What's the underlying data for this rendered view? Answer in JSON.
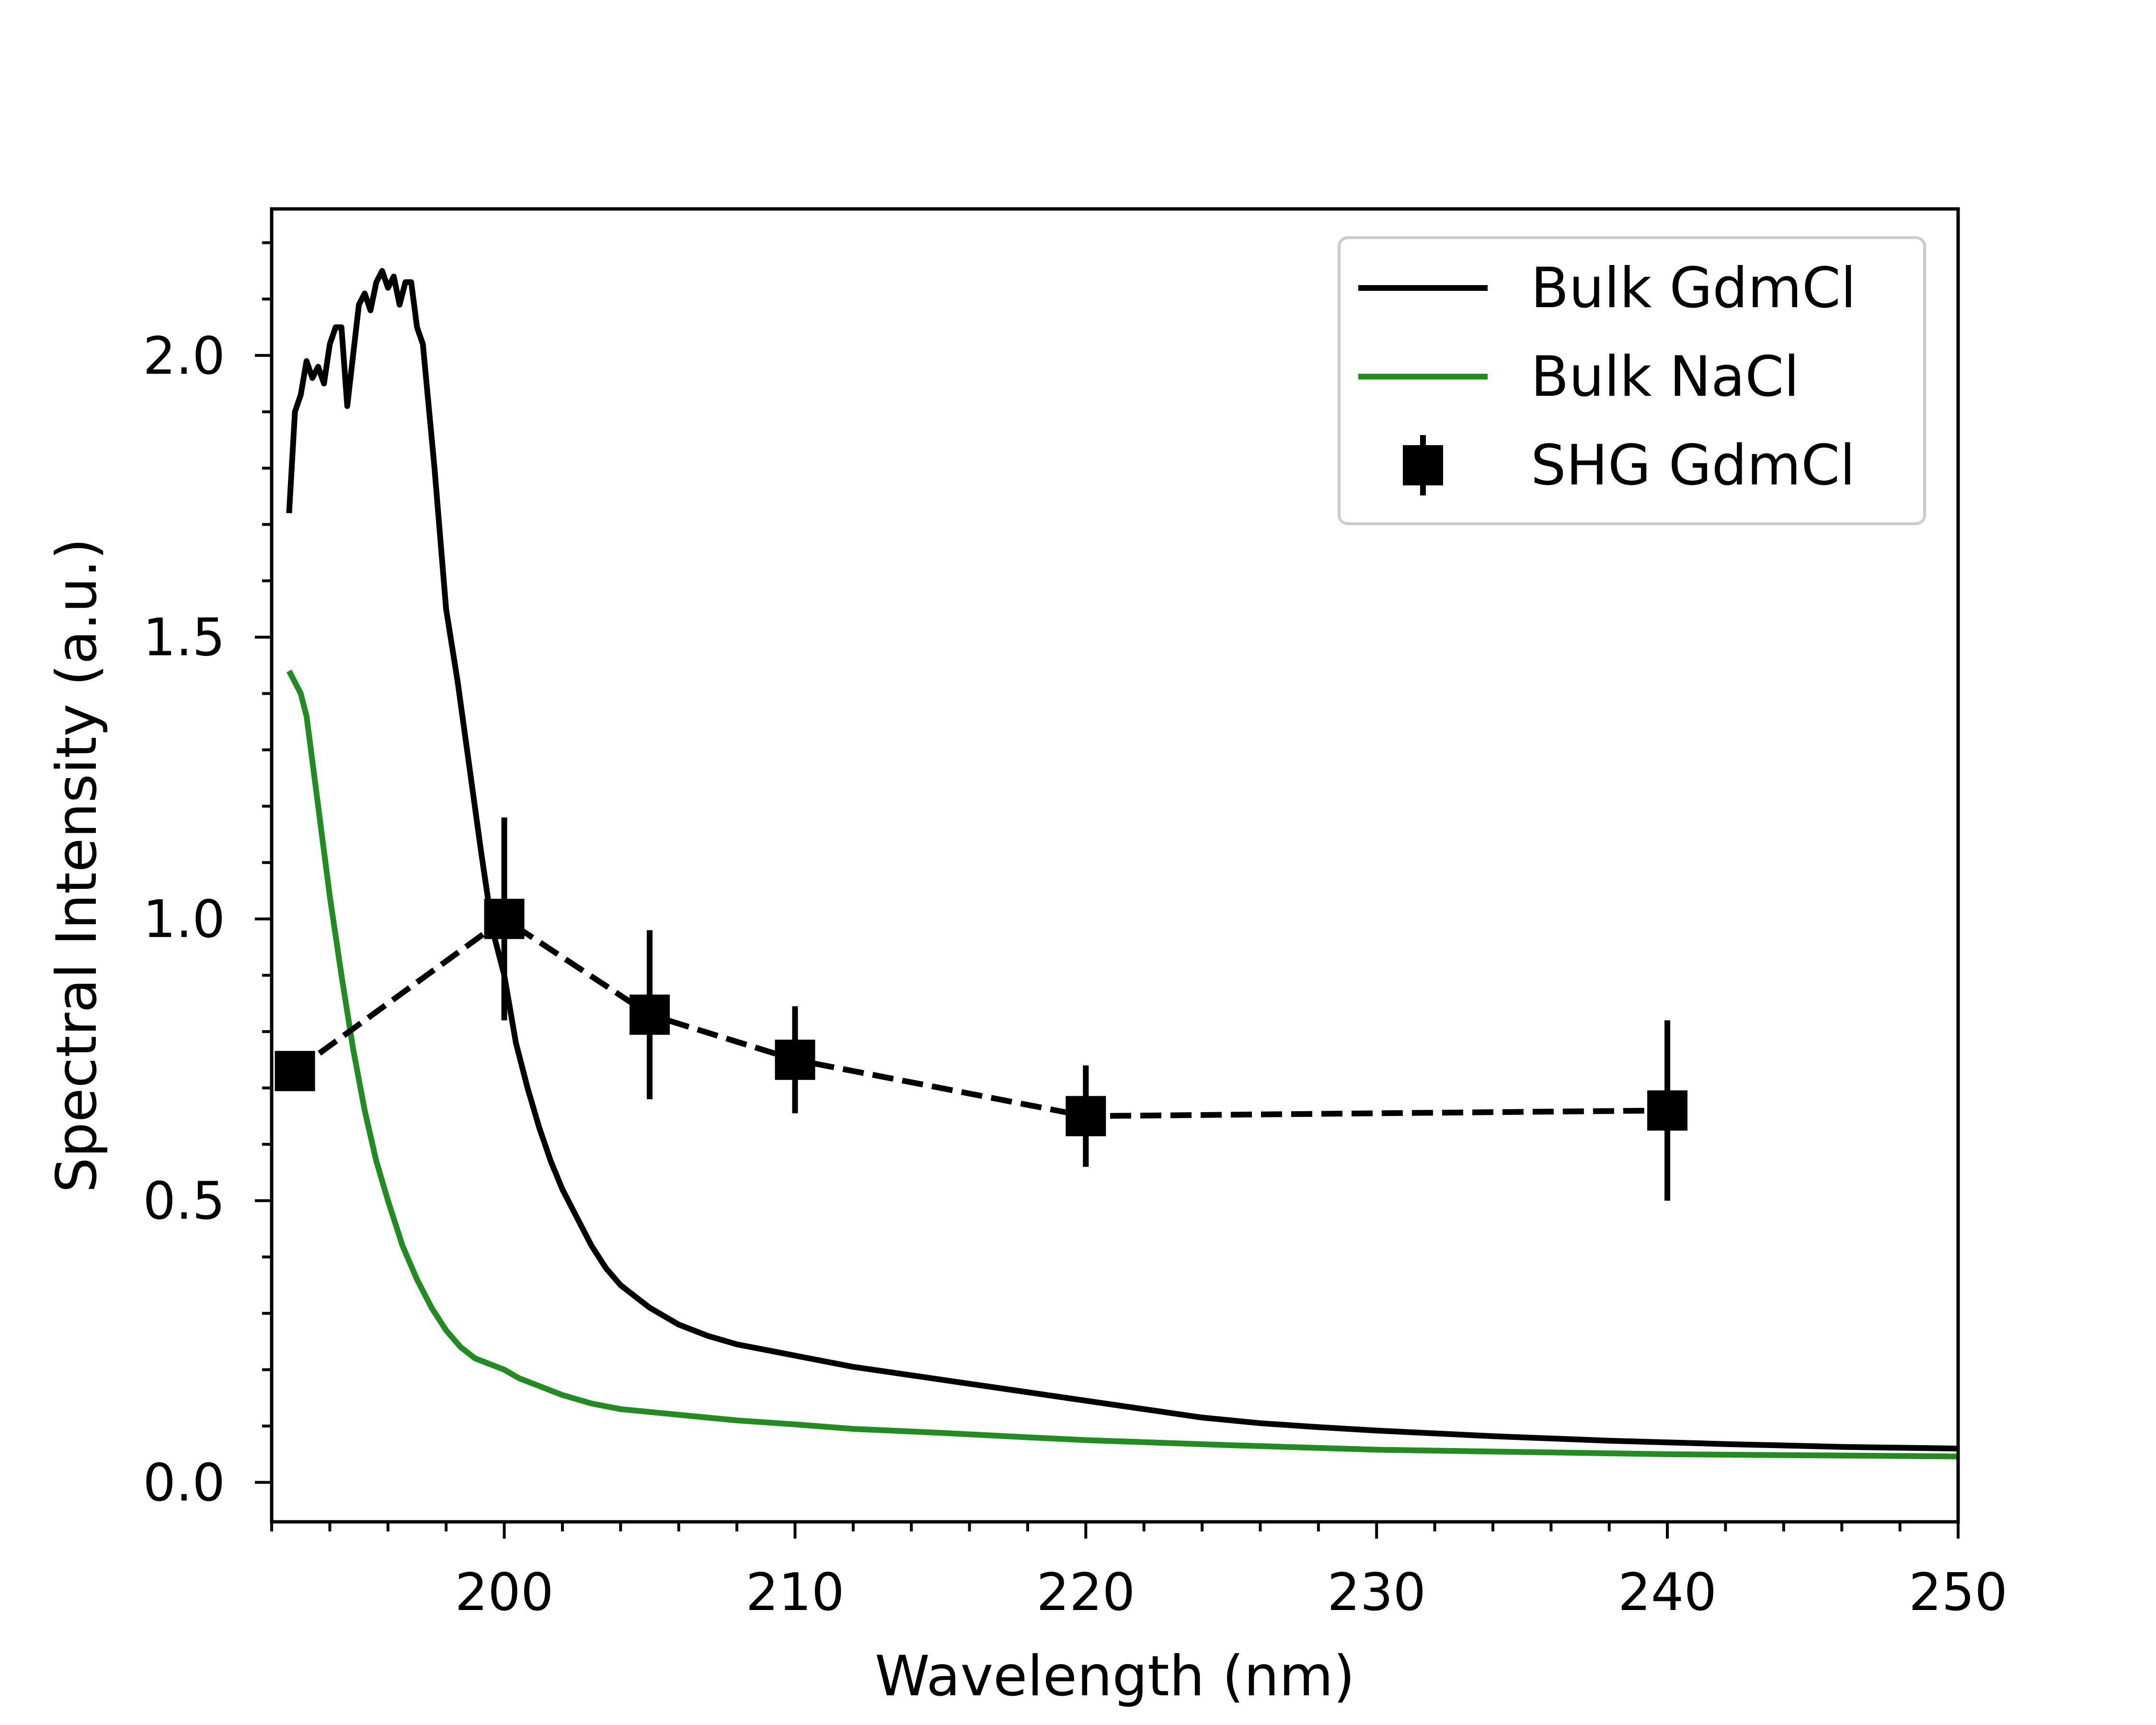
{
  "chart_data": {
    "type": "line",
    "title": "",
    "xlabel": "Wavelength (nm)",
    "ylabel": "Spectral Intensity (a.u.)",
    "xlim": [
      192,
      250
    ],
    "ylim": [
      -0.07,
      2.26
    ],
    "xticks": [
      200,
      210,
      220,
      230,
      240,
      250
    ],
    "yticks": [
      0.0,
      0.5,
      1.0,
      1.5,
      2.0
    ],
    "xtick_labels": [
      "200",
      "210",
      "220",
      "230",
      "240",
      "250"
    ],
    "ytick_labels": [
      "0.0",
      "0.5",
      "1.0",
      "1.5",
      "2.0"
    ],
    "grid": false,
    "legend_position": "top-right",
    "series": [
      {
        "name": "Bulk GdmCl",
        "style": "solid",
        "color": "#000000",
        "x": [
          192.6,
          192.8,
          193.0,
          193.2,
          193.4,
          193.6,
          193.8,
          194.0,
          194.2,
          194.4,
          194.6,
          194.8,
          195.0,
          195.2,
          195.4,
          195.6,
          195.8,
          196.0,
          196.2,
          196.4,
          196.6,
          196.8,
          197.0,
          197.2,
          197.6,
          198.0,
          198.4,
          198.8,
          199.2,
          199.6,
          200.0,
          200.4,
          200.8,
          201.2,
          201.6,
          202.0,
          202.5,
          203.0,
          203.5,
          204.0,
          204.5,
          205.0,
          206.0,
          207.0,
          208.0,
          209.0,
          210.0,
          212.0,
          214.0,
          216.0,
          218.0,
          220.0,
          222.0,
          224.0,
          226.0,
          228.0,
          230.0,
          234.0,
          238.0,
          242.0,
          246.0,
          250.0
        ],
        "values": [
          1.72,
          1.9,
          1.93,
          1.99,
          1.96,
          1.98,
          1.95,
          2.02,
          2.05,
          2.05,
          1.91,
          2.0,
          2.09,
          2.11,
          2.08,
          2.13,
          2.15,
          2.12,
          2.14,
          2.09,
          2.13,
          2.13,
          2.05,
          2.02,
          1.8,
          1.55,
          1.42,
          1.27,
          1.12,
          0.98,
          0.9,
          0.78,
          0.7,
          0.63,
          0.57,
          0.52,
          0.47,
          0.42,
          0.38,
          0.35,
          0.33,
          0.31,
          0.28,
          0.26,
          0.245,
          0.235,
          0.225,
          0.205,
          0.19,
          0.175,
          0.16,
          0.145,
          0.13,
          0.115,
          0.105,
          0.098,
          0.092,
          0.082,
          0.074,
          0.068,
          0.063,
          0.06
        ]
      },
      {
        "name": "Bulk NaCl",
        "style": "solid",
        "color": "#228b22",
        "x": [
          192.6,
          192.8,
          193.0,
          193.2,
          193.4,
          193.6,
          194.0,
          194.4,
          194.8,
          195.2,
          195.6,
          196.0,
          196.5,
          197.0,
          197.5,
          198.0,
          198.5,
          199.0,
          199.5,
          200.0,
          200.5,
          201.0,
          202.0,
          203.0,
          204.0,
          205.0,
          206.0,
          208.0,
          210.0,
          212.0,
          215.0,
          218.0,
          220.0,
          225.0,
          230.0,
          235.0,
          240.0,
          245.0,
          250.0
        ],
        "values": [
          1.44,
          1.42,
          1.4,
          1.36,
          1.28,
          1.2,
          1.04,
          0.9,
          0.77,
          0.66,
          0.57,
          0.5,
          0.42,
          0.36,
          0.31,
          0.27,
          0.24,
          0.22,
          0.21,
          0.2,
          0.185,
          0.175,
          0.155,
          0.14,
          0.13,
          0.125,
          0.12,
          0.11,
          0.103,
          0.095,
          0.088,
          0.08,
          0.075,
          0.066,
          0.058,
          0.054,
          0.05,
          0.048,
          0.046
        ]
      },
      {
        "name": "SHG GdmCl",
        "style": "dashed",
        "color": "#000000",
        "marker": "square",
        "x": [
          192.8,
          200,
          205,
          210,
          220,
          240
        ],
        "values": [
          0.73,
          1.0,
          0.83,
          0.75,
          0.65,
          0.66
        ],
        "errors": [
          0.035,
          0.18,
          0.15,
          0.095,
          0.09,
          0.16
        ]
      }
    ]
  }
}
